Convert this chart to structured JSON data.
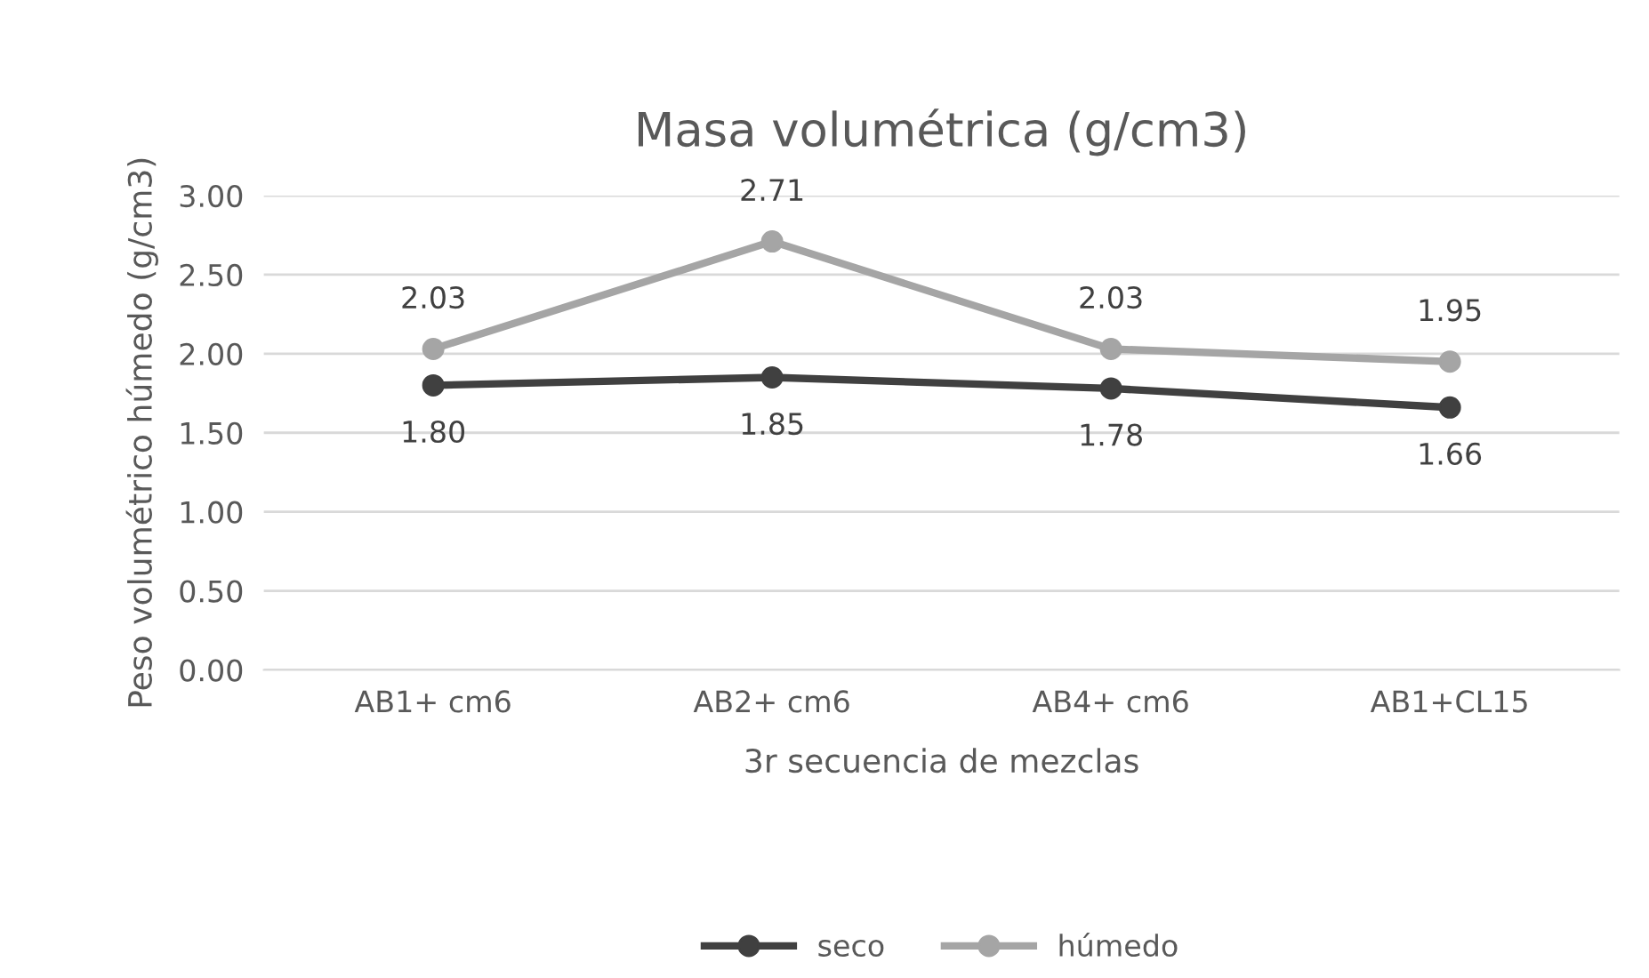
{
  "chart_data": {
    "type": "line",
    "title": "Masa volumétrica (g/cm3)",
    "xlabel": "3r secuencia de mezclas",
    "ylabel": "Peso volumétrico húmedo (g/cm3)",
    "categories": [
      "AB1+ cm6",
      "AB2+ cm6",
      "AB4+ cm6",
      "AB1+CL15"
    ],
    "series": [
      {
        "name": "seco",
        "color": "#404040",
        "values": [
          1.8,
          1.85,
          1.78,
          1.66
        ],
        "value_labels": [
          "1.80",
          "1.85",
          "1.78",
          "1.66"
        ]
      },
      {
        "name": "húmedo",
        "color": "#a5a5a5",
        "values": [
          2.03,
          2.71,
          2.03,
          1.95
        ],
        "value_labels": [
          "2.03",
          "2.71",
          "2.03",
          "1.95"
        ]
      }
    ],
    "ylim": [
      0,
      3
    ],
    "yticks": [
      {
        "value": 0,
        "label": "0.00"
      },
      {
        "value": 0.5,
        "label": "0.50"
      },
      {
        "value": 1,
        "label": "1.00"
      },
      {
        "value": 1.5,
        "label": "1.50"
      },
      {
        "value": 2,
        "label": "2.00"
      },
      {
        "value": 2.5,
        "label": "2.50"
      },
      {
        "value": 3,
        "label": "3.00"
      }
    ],
    "grid": "y",
    "legend": "bottom",
    "marker": "circle",
    "line_style": "solid"
  }
}
